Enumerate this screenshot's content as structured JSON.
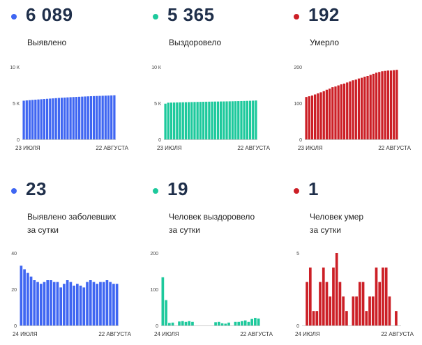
{
  "panels": [
    {
      "value": "6 089",
      "label1": "Выявлено",
      "label2": "",
      "color": "#3f66f2"
    },
    {
      "value": "5 365",
      "label1": "Выздоровело",
      "label2": "",
      "color": "#1dc99c"
    },
    {
      "value": "192",
      "label1": "Умерло",
      "label2": "",
      "color": "#cc1f26"
    },
    {
      "value": "23",
      "label1": "Выявлено заболевших",
      "label2": "за сутки",
      "color": "#3f66f2"
    },
    {
      "value": "19",
      "label1": "Человек выздоровело",
      "label2": "за сутки",
      "color": "#1dc99c"
    },
    {
      "value": "1",
      "label1": "Человек умер",
      "label2": "за сутки",
      "color": "#cc1f26"
    }
  ],
  "chart_data": [
    {
      "type": "bar",
      "x_start_label": "23 ИЮЛЯ",
      "x_end_label": "22 АВГУСТА",
      "ylim": [
        0,
        10000
      ],
      "yticks": [
        0,
        5000,
        10000
      ],
      "ytick_labels": [
        "0",
        "5 К",
        "10 К"
      ],
      "grid": false,
      "color": "#3f66f2",
      "values": [
        5339,
        5380,
        5415,
        5450,
        5480,
        5510,
        5540,
        5570,
        5600,
        5630,
        5660,
        5690,
        5720,
        5745,
        5770,
        5795,
        5820,
        5840,
        5860,
        5880,
        5900,
        5920,
        5940,
        5960,
        5975,
        5990,
        6005,
        6020,
        6035,
        6050,
        6066,
        6089
      ]
    },
    {
      "type": "bar",
      "x_start_label": "23 ИЮЛЯ",
      "x_end_label": "22 АВГУСТА",
      "ylim": [
        0,
        10000
      ],
      "yticks": [
        0,
        5000,
        10000
      ],
      "ytick_labels": [
        "0",
        "5 К",
        "10 К"
      ],
      "grid": false,
      "color": "#1dc99c",
      "values": [
        4930,
        5063,
        5075,
        5085,
        5098,
        5110,
        5122,
        5130,
        5140,
        5150,
        5160,
        5170,
        5180,
        5190,
        5198,
        5205,
        5212,
        5219,
        5225,
        5231,
        5237,
        5244,
        5252,
        5261,
        5272,
        5283,
        5294,
        5304,
        5316,
        5328,
        5346,
        5365
      ]
    },
    {
      "type": "bar",
      "x_start_label": "23 ИЮЛЯ",
      "x_end_label": "22 АВГУСТА",
      "ylim": [
        0,
        200
      ],
      "yticks": [
        0,
        100,
        200
      ],
      "ytick_labels": [
        "0",
        "100",
        "200"
      ],
      "grid": false,
      "color": "#cc1f26",
      "values": [
        117,
        119,
        121,
        124,
        127,
        130,
        133,
        137,
        140,
        144,
        146,
        149,
        152,
        154,
        157,
        160,
        163,
        165,
        168,
        170,
        173,
        175,
        178,
        181,
        184,
        186,
        188,
        189,
        190,
        190,
        191,
        192
      ]
    },
    {
      "type": "bar",
      "x_start_label": "24 ИЮЛЯ",
      "x_end_label": "22 АВГУСТА",
      "ylim": [
        0,
        40
      ],
      "yticks": [
        0,
        20,
        40
      ],
      "ytick_labels": [
        "0",
        "20",
        "40"
      ],
      "grid": false,
      "color": "#3f66f2",
      "values": [
        33,
        31,
        29,
        27,
        25,
        24,
        23,
        24,
        25,
        25,
        24,
        24,
        21,
        23,
        25,
        24,
        22,
        23,
        22,
        21,
        24,
        25,
        24,
        23,
        24,
        24,
        25,
        24,
        23,
        23
      ]
    },
    {
      "type": "bar",
      "x_start_label": "24 ИЮЛЯ",
      "x_end_label": "22 АВГУСТА",
      "ylim": [
        0,
        200
      ],
      "yticks": [
        0,
        100,
        200
      ],
      "ytick_labels": [
        "0",
        "100",
        "200"
      ],
      "grid": false,
      "color": "#1dc99c",
      "values": [
        133,
        70,
        7,
        8,
        0,
        11,
        12,
        10,
        12,
        10,
        0,
        0,
        0,
        0,
        0,
        0,
        9,
        10,
        6,
        5,
        8,
        0,
        10,
        10,
        12,
        14,
        10,
        18,
        21,
        19
      ]
    },
    {
      "type": "bar",
      "x_start_label": "24 ИЮЛЯ",
      "x_end_label": "22 АВГУСТА",
      "ylim": [
        0,
        5
      ],
      "yticks": [
        0,
        5
      ],
      "ytick_labels": [
        "0",
        "5"
      ],
      "grid": false,
      "color": "#cc1f26",
      "values": [
        0,
        3,
        4,
        1,
        1,
        3,
        4,
        3,
        2,
        4,
        5,
        3,
        2,
        1,
        0,
        2,
        2,
        3,
        3,
        1,
        2,
        2,
        4,
        3,
        4,
        4,
        2,
        0,
        1,
        0
      ]
    }
  ]
}
